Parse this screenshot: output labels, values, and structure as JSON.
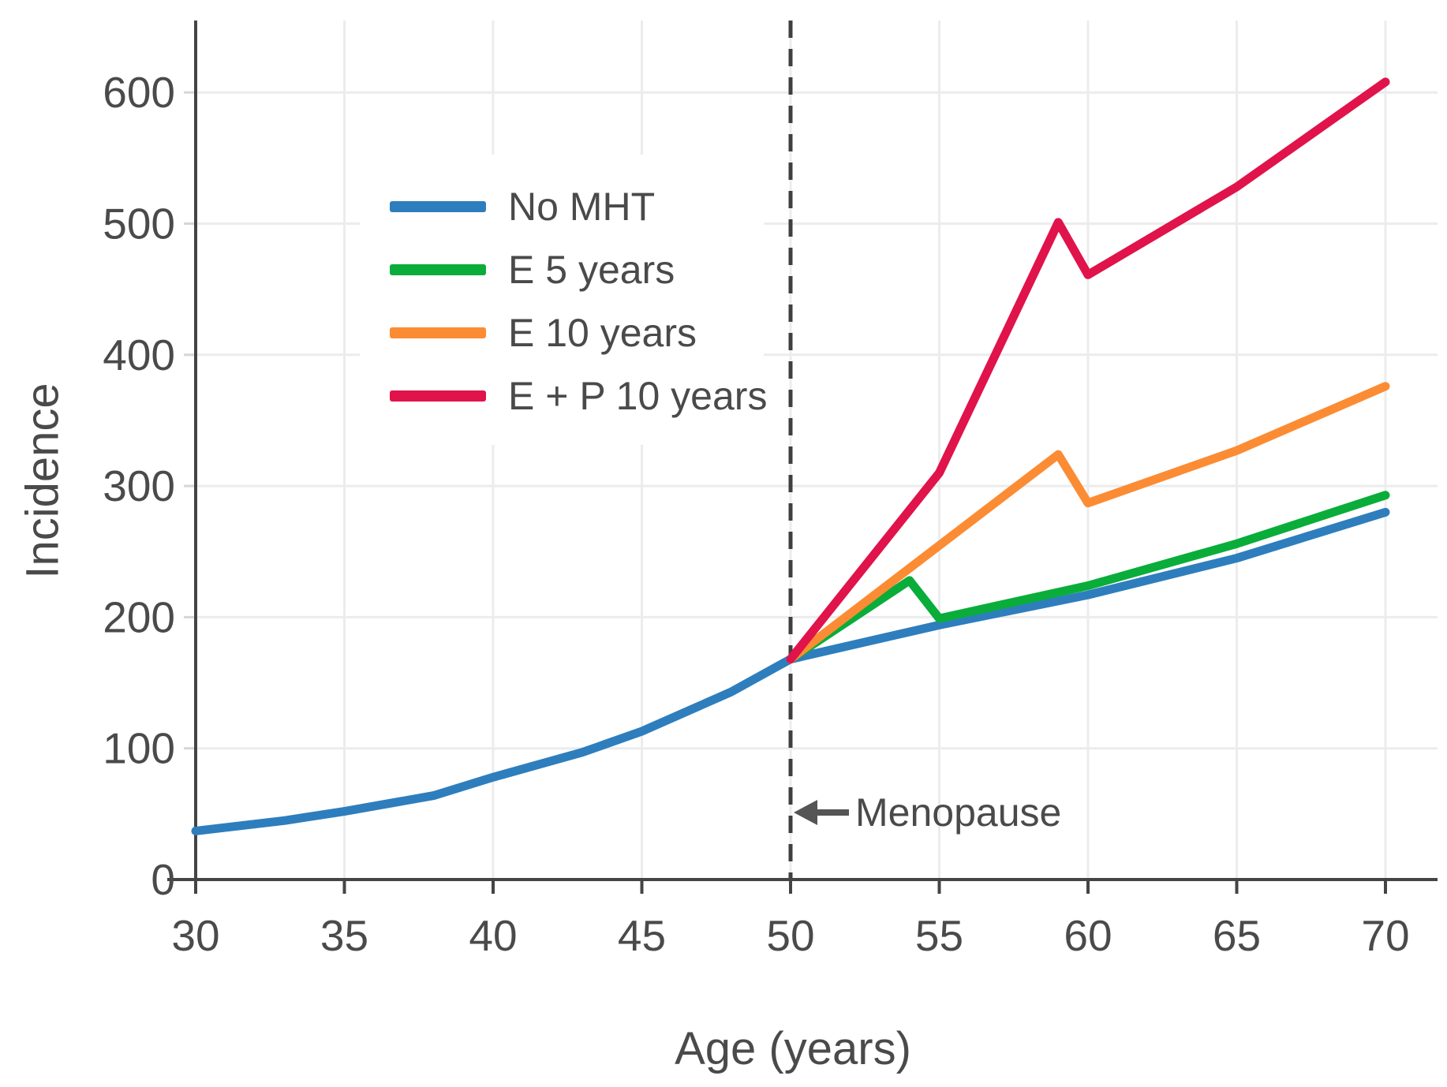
{
  "chart_data": {
    "type": "line",
    "title": "",
    "xlabel": "Age (years)",
    "ylabel": "Incidence",
    "xlim": [
      29,
      71.7
    ],
    "ylim": [
      0,
      655
    ],
    "xticks": [
      30,
      35,
      40,
      45,
      50,
      55,
      60,
      65,
      70
    ],
    "yticks": [
      0,
      100,
      200,
      300,
      400,
      500,
      600
    ],
    "grid": true,
    "legend_position": "upper-left-inside",
    "series": [
      {
        "name": "No MHT",
        "color": "#2e7ebd",
        "x": [
          30,
          33,
          35,
          38,
          40,
          43,
          45,
          48,
          50,
          55,
          60,
          65,
          70
        ],
        "y": [
          37,
          45,
          52,
          64,
          78,
          97,
          113,
          143,
          168,
          194,
          217,
          245,
          280
        ]
      },
      {
        "name": "E 5 years",
        "color": "#0aad3a",
        "x": [
          50,
          54,
          55,
          60,
          65,
          70
        ],
        "y": [
          168,
          228,
          199,
          224,
          256,
          293
        ]
      },
      {
        "name": "E 10 years",
        "color": "#fb8c34",
        "x": [
          50,
          59,
          60,
          65,
          70
        ],
        "y": [
          168,
          324,
          287,
          327,
          376
        ]
      },
      {
        "name": "E + P 10 years",
        "color": "#e0134a",
        "x": [
          50,
          55,
          59,
          60,
          65,
          70
        ],
        "y": [
          168,
          310,
          501,
          461,
          528,
          608
        ]
      }
    ],
    "vline": {
      "x": 50,
      "style": "dashed",
      "color": "#3f3f3f"
    },
    "annotation": {
      "text": "Menopause",
      "arrow": "left",
      "at_x": 50,
      "at_y": 50
    },
    "style": {
      "grid_color": "#ececec",
      "axis_color": "#444444",
      "tick_label_color": "#4a4a4a",
      "line_width": 11
    }
  }
}
